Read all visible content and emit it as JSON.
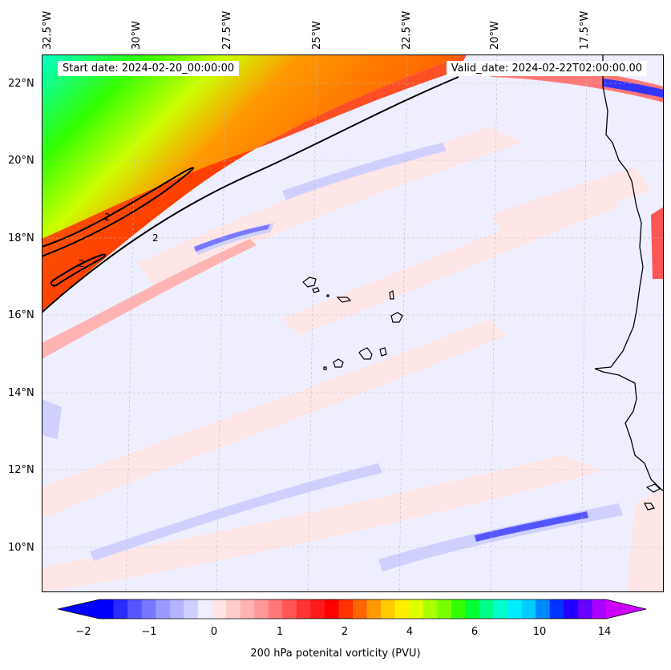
{
  "banner": {
    "start_date": "Start date: 2024-02-20_00:00:00",
    "valid_date": "Valid_date: 2024-02-22T02:00:00.00"
  },
  "lon_labels": [
    "32.5°W",
    "30°W",
    "27.5°W",
    "25°W",
    "22.5°W",
    "20°W",
    "17.5°W"
  ],
  "lat_labels": [
    "22°N",
    "20°N",
    "18°N",
    "16°N",
    "14°N",
    "12°N",
    "10°N"
  ],
  "contour_label": "2",
  "colorbar": {
    "label": "200 hPa potenital vorticity (PVU)",
    "tick_labels": [
      "−2",
      "−1",
      "0",
      "1",
      "2",
      "4",
      "6",
      "10",
      "14"
    ],
    "colors": [
      "#0000ff",
      "#2a2aff",
      "#5555ff",
      "#7777ff",
      "#9999ff",
      "#b3b3ff",
      "#d0d0ff",
      "#eeeeff",
      "#ffe6e6",
      "#ffcccc",
      "#ffb3b3",
      "#ff9999",
      "#ff7777",
      "#ff5555",
      "#ff3333",
      "#ff1a1a",
      "#ff0000",
      "#ff3300",
      "#ff6600",
      "#ff9900",
      "#ffcc00",
      "#ffee00",
      "#ddff00",
      "#aaff00",
      "#77ff00",
      "#33ff00",
      "#00ff33",
      "#00ff88",
      "#00ffcc",
      "#00eeff",
      "#00ccff",
      "#0088ff",
      "#0033ff",
      "#2200ff",
      "#6600ff",
      "#aa00ff"
    ],
    "under_color": "#0000ff",
    "over_color": "#cc00ff"
  }
}
